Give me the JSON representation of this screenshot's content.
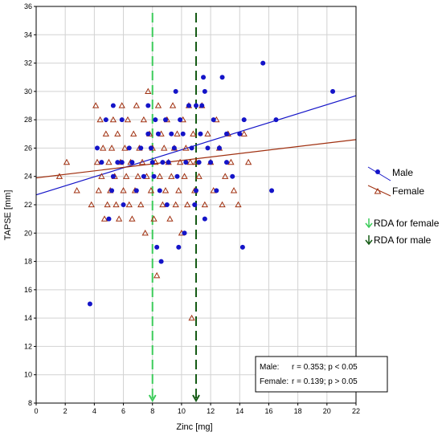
{
  "chart_data": {
    "type": "scatter",
    "title": "",
    "xlabel": "Zinc [mg]",
    "ylabel": "TAPSE [mm]",
    "xlim": [
      0,
      22
    ],
    "ylim": [
      8,
      36
    ],
    "xticks": [
      0,
      2,
      4,
      6,
      8,
      10,
      12,
      14,
      16,
      18,
      20,
      22
    ],
    "yticks": [
      8,
      10,
      12,
      14,
      16,
      18,
      20,
      22,
      24,
      26,
      28,
      30,
      32,
      34,
      36
    ],
    "grid": true,
    "series": [
      {
        "name": "Male",
        "marker": "circle",
        "color": "#1414c8",
        "points": [
          [
            3.7,
            15
          ],
          [
            4.2,
            26
          ],
          [
            4.5,
            25
          ],
          [
            4.8,
            28
          ],
          [
            5.0,
            21
          ],
          [
            5.2,
            23
          ],
          [
            5.3,
            24
          ],
          [
            5.3,
            29
          ],
          [
            5.6,
            25
          ],
          [
            5.9,
            25
          ],
          [
            5.9,
            28
          ],
          [
            6.0,
            22
          ],
          [
            6.4,
            26
          ],
          [
            6.6,
            25
          ],
          [
            6.9,
            23
          ],
          [
            7.2,
            26
          ],
          [
            7.4,
            24
          ],
          [
            7.7,
            27
          ],
          [
            7.7,
            29
          ],
          [
            7.9,
            26
          ],
          [
            8.0,
            25
          ],
          [
            8.1,
            24
          ],
          [
            8.2,
            28
          ],
          [
            8.3,
            19
          ],
          [
            8.4,
            27
          ],
          [
            8.5,
            23
          ],
          [
            8.6,
            18
          ],
          [
            8.7,
            25
          ],
          [
            8.9,
            28
          ],
          [
            9.0,
            22
          ],
          [
            9.1,
            25
          ],
          [
            9.3,
            27
          ],
          [
            9.5,
            26
          ],
          [
            9.6,
            30
          ],
          [
            9.7,
            24
          ],
          [
            9.8,
            19
          ],
          [
            9.9,
            28
          ],
          [
            10.1,
            27
          ],
          [
            10.2,
            20
          ],
          [
            10.3,
            25
          ],
          [
            10.5,
            29
          ],
          [
            10.7,
            26
          ],
          [
            10.9,
            22
          ],
          [
            11.0,
            29
          ],
          [
            11.0,
            23
          ],
          [
            11.2,
            25
          ],
          [
            11.3,
            27
          ],
          [
            11.4,
            29
          ],
          [
            11.5,
            31
          ],
          [
            11.6,
            30
          ],
          [
            11.6,
            21
          ],
          [
            11.8,
            26
          ],
          [
            12.0,
            25
          ],
          [
            12.2,
            28
          ],
          [
            12.4,
            23
          ],
          [
            12.6,
            26
          ],
          [
            12.8,
            31
          ],
          [
            13.1,
            27
          ],
          [
            13.1,
            25
          ],
          [
            13.5,
            24
          ],
          [
            14.0,
            27
          ],
          [
            14.2,
            19
          ],
          [
            14.3,
            28
          ],
          [
            15.6,
            32
          ],
          [
            16.2,
            23
          ],
          [
            16.5,
            28
          ],
          [
            20.4,
            30
          ]
        ]
      },
      {
        "name": "Female",
        "marker": "triangle",
        "color": "#a03010",
        "points": [
          [
            1.6,
            24
          ],
          [
            2.1,
            25
          ],
          [
            2.8,
            23
          ],
          [
            3.8,
            22
          ],
          [
            4.1,
            29
          ],
          [
            4.2,
            25
          ],
          [
            4.3,
            23
          ],
          [
            4.4,
            28
          ],
          [
            4.5,
            24
          ],
          [
            4.6,
            26
          ],
          [
            4.7,
            21
          ],
          [
            4.8,
            27
          ],
          [
            4.9,
            22
          ],
          [
            5.0,
            25
          ],
          [
            5.1,
            23
          ],
          [
            5.2,
            26
          ],
          [
            5.3,
            28
          ],
          [
            5.4,
            24
          ],
          [
            5.5,
            22
          ],
          [
            5.6,
            27
          ],
          [
            5.7,
            21
          ],
          [
            5.8,
            25
          ],
          [
            5.9,
            29
          ],
          [
            6.0,
            23
          ],
          [
            6.1,
            26
          ],
          [
            6.2,
            24
          ],
          [
            6.3,
            28
          ],
          [
            6.4,
            22
          ],
          [
            6.5,
            25
          ],
          [
            6.6,
            21
          ],
          [
            6.7,
            27
          ],
          [
            6.8,
            23
          ],
          [
            6.9,
            29
          ],
          [
            7.0,
            24
          ],
          [
            7.1,
            26
          ],
          [
            7.2,
            22
          ],
          [
            7.3,
            25
          ],
          [
            7.4,
            28
          ],
          [
            7.5,
            20
          ],
          [
            7.6,
            24
          ],
          [
            7.7,
            30
          ],
          [
            7.8,
            27
          ],
          [
            7.9,
            23
          ],
          [
            8.0,
            26
          ],
          [
            8.1,
            21
          ],
          [
            8.2,
            25
          ],
          [
            8.3,
            17
          ],
          [
            8.4,
            29
          ],
          [
            8.5,
            24
          ],
          [
            8.6,
            27
          ],
          [
            8.7,
            22
          ],
          [
            8.8,
            26
          ],
          [
            8.9,
            23
          ],
          [
            9.0,
            28
          ],
          [
            9.1,
            25
          ],
          [
            9.2,
            21
          ],
          [
            9.3,
            24
          ],
          [
            9.4,
            29
          ],
          [
            9.5,
            26
          ],
          [
            9.6,
            22
          ],
          [
            9.7,
            27
          ],
          [
            9.8,
            23
          ],
          [
            9.9,
            25
          ],
          [
            10.0,
            20
          ],
          [
            10.1,
            28
          ],
          [
            10.2,
            24
          ],
          [
            10.3,
            26
          ],
          [
            10.4,
            22
          ],
          [
            10.5,
            29
          ],
          [
            10.6,
            25
          ],
          [
            10.7,
            14
          ],
          [
            10.8,
            27
          ],
          [
            10.9,
            23
          ],
          [
            11.0,
            25
          ],
          [
            11.2,
            24
          ],
          [
            11.4,
            29
          ],
          [
            11.6,
            22
          ],
          [
            11.8,
            27
          ],
          [
            12.0,
            25
          ],
          [
            12.2,
            23
          ],
          [
            12.4,
            28
          ],
          [
            12.6,
            26
          ],
          [
            12.8,
            22
          ],
          [
            13.0,
            24
          ],
          [
            13.2,
            27
          ],
          [
            13.4,
            25
          ],
          [
            13.6,
            23
          ],
          [
            13.9,
            22
          ],
          [
            14.3,
            27
          ],
          [
            14.6,
            25
          ]
        ]
      }
    ],
    "regression": [
      {
        "name": "Male",
        "color": "#1414c8",
        "x": [
          0,
          22
        ],
        "y": [
          22.7,
          29.7
        ]
      },
      {
        "name": "Female",
        "color": "#a03010",
        "x": [
          0,
          22
        ],
        "y": [
          23.9,
          26.6
        ]
      }
    ],
    "reference_lines": [
      {
        "name": "RDA for female",
        "x": 8,
        "color": "#3ccc5a"
      },
      {
        "name": "RDA for male",
        "x": 11,
        "color": "#145a14"
      }
    ],
    "legend": {
      "placement": "right",
      "entries": [
        {
          "label": "Male",
          "marker": "circle",
          "color": "#1414c8"
        },
        {
          "label": "Female",
          "marker": "triangle",
          "color": "#a03010"
        },
        {
          "label": "RDA for female",
          "marker": "arrow-down",
          "color": "#3ccc5a"
        },
        {
          "label": "RDA for male",
          "marker": "arrow-down",
          "color": "#145a14"
        }
      ]
    },
    "stats_box": {
      "placement": "bottom-right",
      "male_label": "Male:",
      "male_stat": "r = 0.353; p < 0.05",
      "female_label": "Female:",
      "female_stat": "r = 0.139; p > 0.05"
    }
  }
}
